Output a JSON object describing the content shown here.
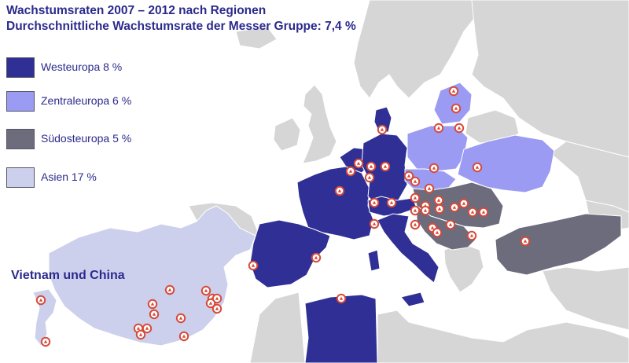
{
  "title": {
    "line1": "Wachstumsraten 2007 – 2012 nach Regionen",
    "line2": "Durchschnittliche Wachstumsrate der Messer Gruppe: 7,4 %"
  },
  "legend": [
    {
      "label": "Westeuropa 8 %",
      "color": "#2f2f96"
    },
    {
      "label": "Zentraleuropa 6 %",
      "color": "#9b9bf4"
    },
    {
      "label": "Südosteuropa 5 %",
      "color": "#6c6c7c"
    },
    {
      "label": "Asien  17 %",
      "color": "#cdd0ec"
    }
  ],
  "region_label": "Vietnam und China",
  "colors": {
    "background_land": "#d6d6d6",
    "sea": "#ffffff",
    "borders": "#ffffff",
    "site_marker_fill": "#ffffff",
    "site_marker_ring": "#d64a3a",
    "text": "#2b2a8c"
  },
  "regions": [
    "westeuropa",
    "zentraleuropa",
    "suedosteuropa",
    "asien"
  ],
  "site_marker_icon": "gas-flask-icon"
}
